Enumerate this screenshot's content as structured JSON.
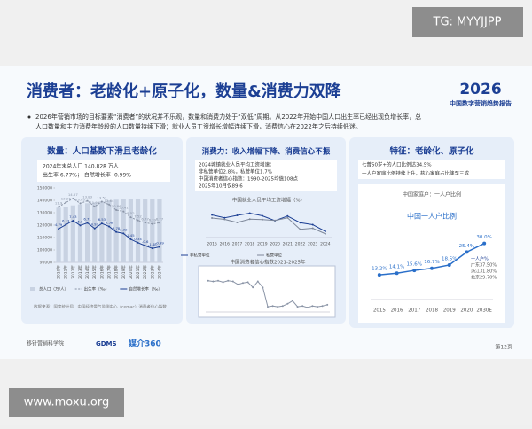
{
  "watermarks": {
    "top": "TG: MYYJJPP",
    "bottom": "www.moxu.org"
  },
  "header": {
    "title": "消费者：老龄化+原子化，数量&消费力双降",
    "logo": "2026",
    "report": "中国数字营销趋势报告",
    "bullet": [
      "2026年营销市场的目标要素“消费者”的状况并不乐观，数量和消费力处于“双低”周期。从2022年开始中国人口出生率已经出现负增长率，总",
      "人口数量和主力消费年龄段的人口数量持续下滑；就业人员工资增长增幅连续下滑，消费信心在2022年之后持续低迷。"
    ]
  },
  "panels": [
    {
      "heading": "数量：人口基数下滑且老龄化",
      "info": [
        "2024年末总人口  140,828 万人",
        "出生率  6.77%；  自然增长率 -0.99%"
      ],
      "source": "数据来源：国家统计局、中国经济景气监测中心（cemac）消费者信心指数"
    },
    {
      "heading": "消费力：收入增幅下降、消费信心不振",
      "info": [
        "2024城镇就业人员平均工资增速：",
        "非私营单位2.8%，私营单位1.7%",
        "中国消费者信心指数：1990-2025均值108点",
        "2025年10月仅89.6"
      ]
    },
    {
      "heading": "特征：老龄化、原子化",
      "info": [
        "七普50岁+的人口比例达34.5%",
        "一人户家庭比例持续上升，核心家庭占比降至三成"
      ]
    }
  ],
  "footer": {
    "logos": [
      "移针营销科学院",
      "GDMS",
      "媒介360"
    ],
    "page": "第12页"
  },
  "chart_data": [
    {
      "type": "combo",
      "categories": [
        "2010年",
        "2011年",
        "2012年",
        "2013年",
        "2014年",
        "2015年",
        "2016年",
        "2017年",
        "2018年",
        "2019年",
        "2020年",
        "2021年",
        "2022年",
        "2023年",
        "2024年"
      ],
      "series": [
        {
          "name": "总人口（万/人）",
          "type": "bar",
          "color": "#c8d2e2",
          "values": [
            134091,
            134916,
            135922,
            136726,
            137646,
            138326,
            139232,
            140011,
            140541,
            141008,
            141212,
            141260,
            141175,
            140967,
            140828
          ]
        },
        {
          "name": "出生率（‰）",
          "type": "line",
          "style": "dashed",
          "axis": "y2",
          "color": "#8a94a6",
          "values": [
            11.9,
            13.27,
            14.57,
            13.03,
            13.83,
            11.99,
            13.57,
            12.64,
            10.86,
            10.41,
            8.52,
            7.52,
            6.77,
            6.39,
            6.77
          ]
        },
        {
          "name": "自然增长率（‰）",
          "type": "line",
          "style": "solid",
          "axis": "y2",
          "color": "#1c3f94",
          "values": [
            4.79,
            6.13,
            7.43,
            5.9,
            6.71,
            4.93,
            6.53,
            5.58,
            3.78,
            3.32,
            1.45,
            0.34,
            -0.6,
            -1.48,
            -0.99
          ]
        }
      ],
      "ylim": [
        90000,
        150000
      ],
      "yticks": [
        90000,
        100000,
        110000,
        120000,
        130000,
        140000,
        150000
      ],
      "y2lim": [
        -6,
        18
      ]
    },
    {
      "type": "line",
      "title": "中国就业人员平均工资增幅（%）",
      "categories": [
        "2015",
        "2016",
        "2017",
        "2018",
        "2019",
        "2020",
        "2021",
        "2022",
        "2023",
        "2024"
      ],
      "series": [
        {
          "name": "非私营单位",
          "color": "#1c3f94",
          "values": [
            10.2,
            8.9,
            10.0,
            11.0,
            9.8,
            7.6,
            9.7,
            6.7,
            5.8,
            2.8
          ]
        },
        {
          "name": "私营单位",
          "color": "#7d8799",
          "values": [
            8.8,
            8.2,
            6.8,
            8.3,
            8.1,
            7.7,
            8.9,
            3.7,
            4.2,
            1.7
          ]
        }
      ],
      "ylim": [
        0,
        12
      ]
    },
    {
      "type": "line",
      "title": "中国消费者信心指数2021-2025年",
      "values": [
        122,
        121,
        122,
        120,
        122,
        121,
        117,
        119,
        120,
        113,
        121,
        113,
        87,
        88,
        87,
        88,
        91,
        95,
        87,
        88,
        86,
        88,
        87,
        88,
        89.6
      ],
      "color": "#8a94a6",
      "ylim": [
        80,
        130
      ]
    },
    {
      "type": "line",
      "title": "中国家庭户：一人户比例",
      "subtitle": "中国一人户比例",
      "categories": [
        "2015",
        "2016",
        "2017",
        "2018",
        "2019",
        "2020",
        "2030E"
      ],
      "values": [
        13.2,
        14.1,
        15.6,
        16.7,
        18.5,
        25.4,
        30.0
      ],
      "value_labels": [
        "13.2%",
        "14.1%",
        "15.6%",
        "16.7%",
        "18.5%",
        "25.4%",
        "30.0%"
      ],
      "color": "#2a6fc9",
      "ylim": [
        0,
        36
      ],
      "annotation": [
        "一人户%",
        "广东37.50%",
        "浙江31.80%",
        "北京29.70%"
      ]
    }
  ]
}
